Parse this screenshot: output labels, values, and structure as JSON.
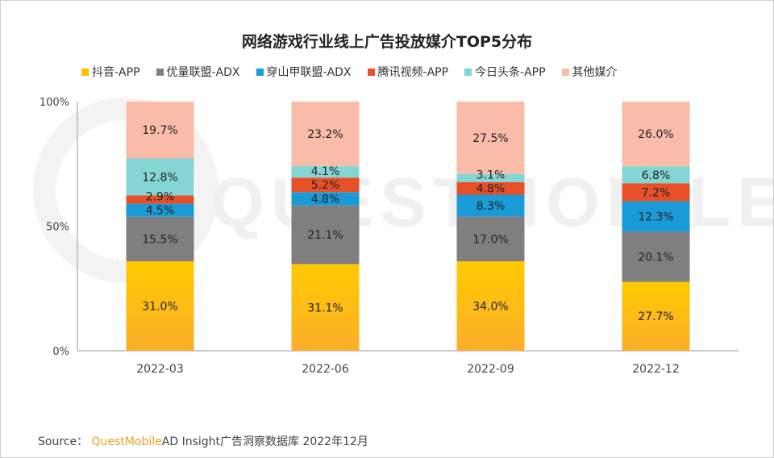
{
  "watermark": "QUESTMOBILE",
  "source": {
    "label": "Source：",
    "brand": "QuestMobile",
    "text": "AD Insight广告洞察数据库 2022年12月"
  },
  "chart_data": {
    "type": "bar",
    "stacked": true,
    "title": "网络游戏行业线上广告投放媒介TOP5分布",
    "legend_position": "top",
    "categories": [
      "2022-03",
      "2022-06",
      "2022-09",
      "2022-12"
    ],
    "yticks": [
      "0%",
      "50%",
      "100%"
    ],
    "ylim": [
      0,
      100
    ],
    "grid": false,
    "series": [
      {
        "name": "抖音-APP",
        "color": "#FFC000",
        "values": [
          31.0,
          31.1,
          34.0,
          27.7
        ]
      },
      {
        "name": "优量联盟-ADX",
        "color": "#7F7F7F",
        "values": [
          15.5,
          21.1,
          17.0,
          20.1
        ]
      },
      {
        "name": "穿山甲联盟-ADX",
        "color": "#1A9AD6",
        "values": [
          4.5,
          4.8,
          8.3,
          12.3
        ]
      },
      {
        "name": "腾讯视频-APP",
        "color": "#E8502A",
        "values": [
          2.9,
          5.2,
          4.8,
          7.2
        ]
      },
      {
        "name": "今日头条-APP",
        "color": "#84D6D4",
        "values": [
          12.8,
          4.1,
          3.1,
          6.8
        ]
      },
      {
        "name": "其他媒介",
        "color": "#F8BCA8",
        "values": [
          19.7,
          23.2,
          27.5,
          26.0
        ]
      }
    ]
  }
}
